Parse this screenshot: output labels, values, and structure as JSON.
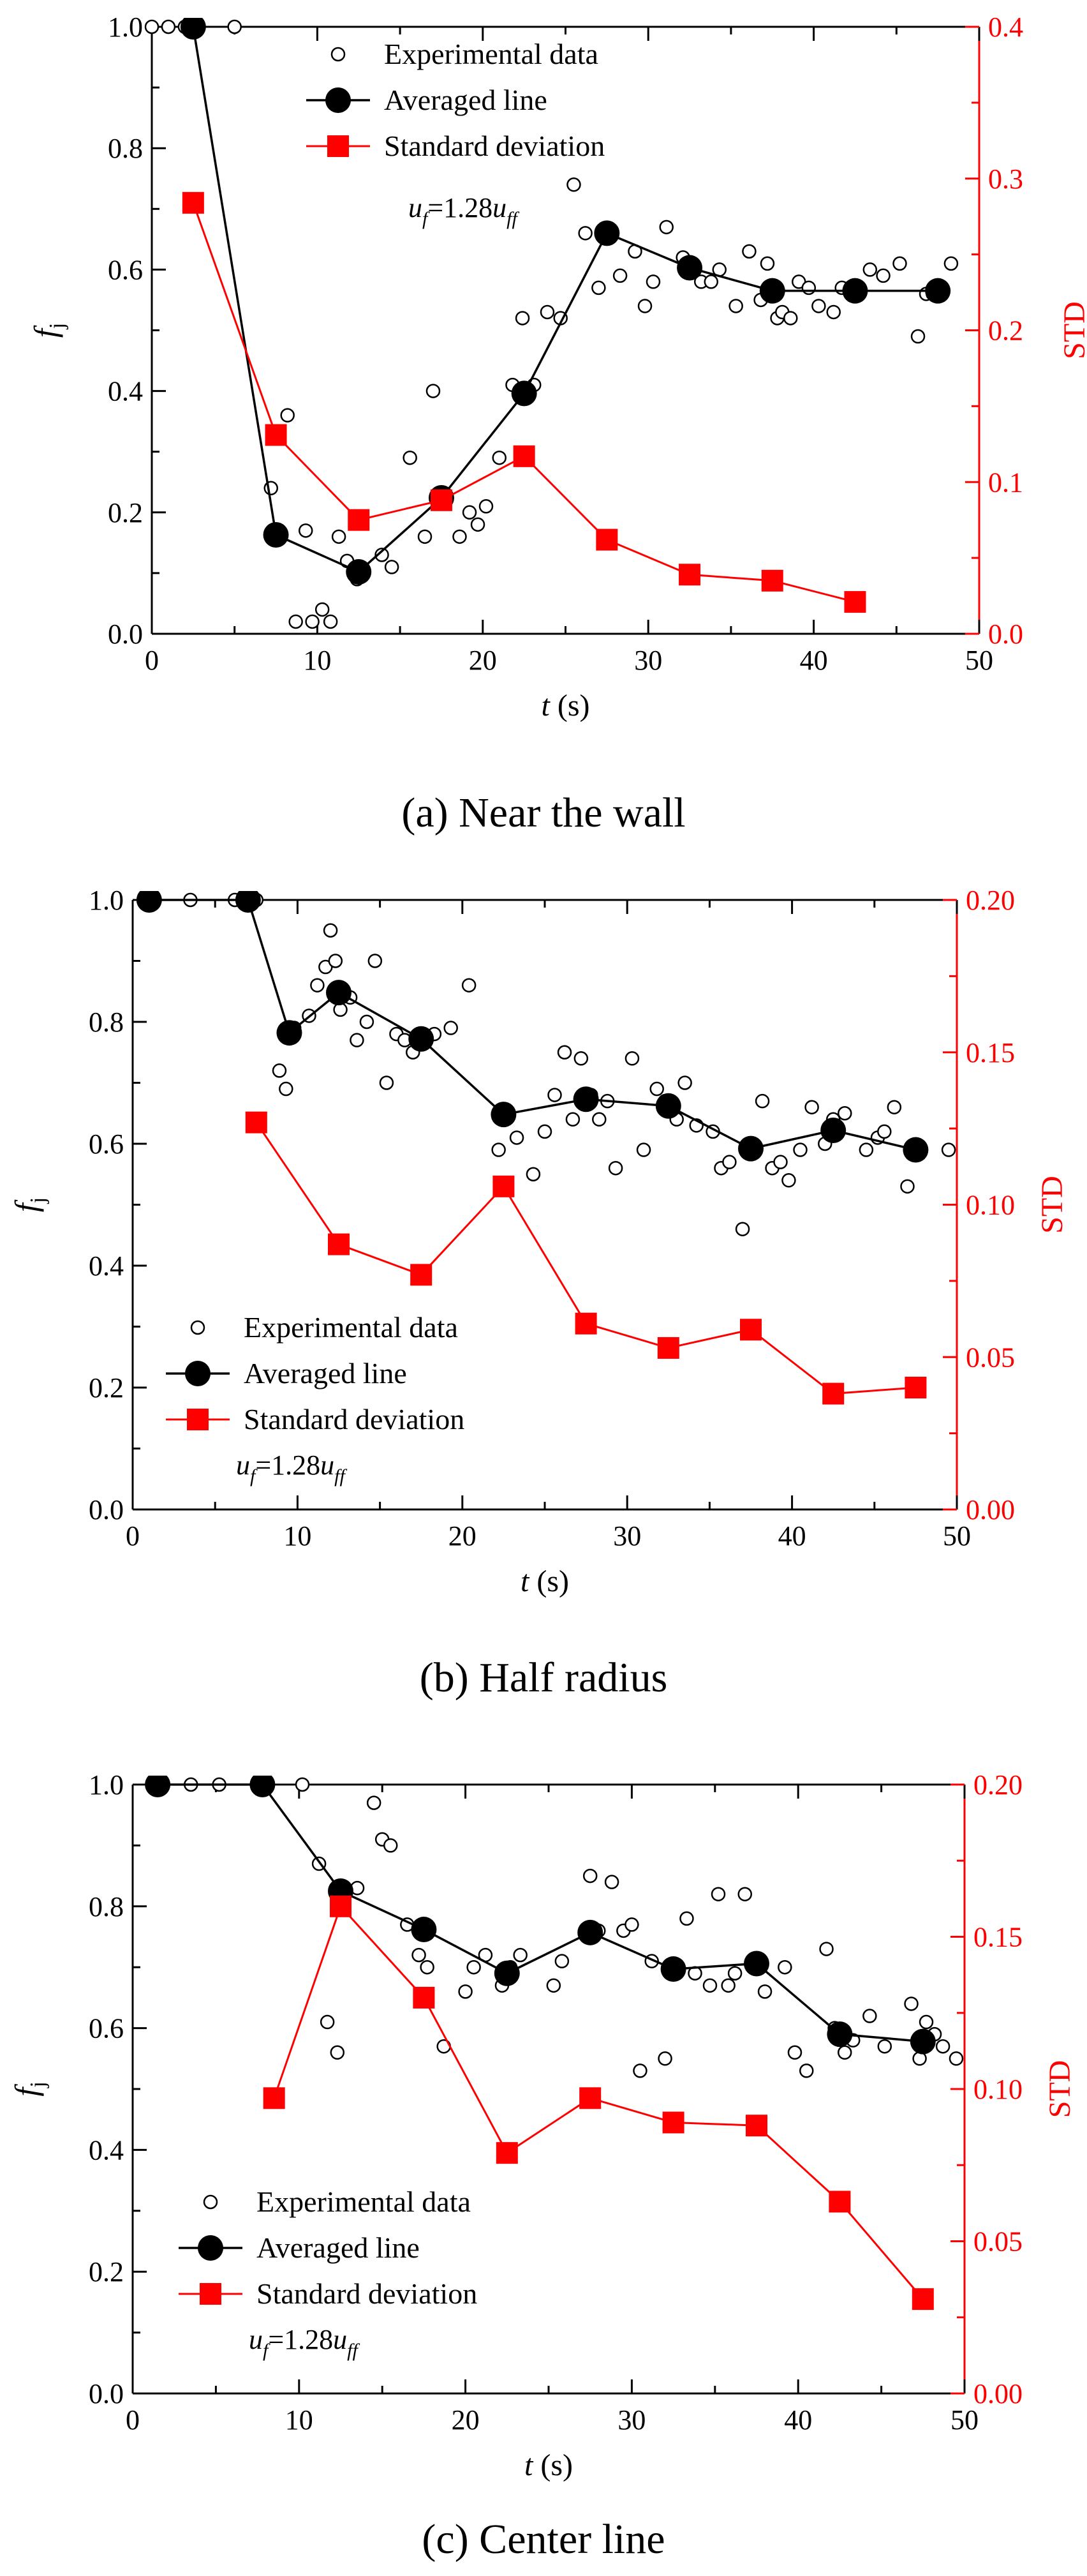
{
  "colors": {
    "primary": "#000000",
    "secondary": "#ff0000"
  },
  "chart_data": [
    {
      "type": "scatter",
      "caption": "(a) Near the wall",
      "xlabel_italic": "t",
      "xlabel_unit": " (s)",
      "ylabel_main": "f",
      "ylabel_sub": "j",
      "y2label": "STD",
      "xlim": [
        0,
        50
      ],
      "ylim": [
        0,
        1
      ],
      "y2lim": [
        0,
        0.4
      ],
      "xticks": [
        0,
        10,
        20,
        30,
        40,
        50
      ],
      "yticks": [
        0.0,
        0.2,
        0.4,
        0.6,
        0.8,
        1.0
      ],
      "y2ticks": [
        0.0,
        0.1,
        0.2,
        0.3,
        0.4
      ],
      "legend_position": "top-center",
      "annotation": {
        "u": "u",
        "f": "f",
        "eq": "=1.28",
        "ff": "ff"
      },
      "series": [
        {
          "name": "Experimental data",
          "style": "open-circle",
          "axis": "left",
          "x": [
            0,
            1,
            2,
            5,
            7.2,
            8.2,
            8.7,
            9.3,
            9.7,
            10.3,
            10.8,
            11.3,
            11.8,
            12.4,
            13.9,
            14.5,
            15.6,
            16.5,
            17.0,
            17.6,
            18.6,
            19.2,
            19.7,
            20.2,
            21.0,
            21.8,
            22.4,
            23.1,
            23.9,
            24.7,
            25.5,
            26.2,
            27.0,
            27.7,
            28.3,
            29.2,
            29.8,
            30.3,
            31.1,
            32.1,
            33.2,
            33.8,
            34.3,
            35.3,
            36.1,
            36.8,
            37.2,
            37.8,
            38.1,
            38.6,
            39.1,
            39.7,
            40.3,
            41.2,
            41.7,
            42.3,
            43.4,
            44.2,
            45.2,
            46.3,
            46.8,
            47.2,
            48.3
          ],
          "y": [
            1.0,
            1.0,
            1.0,
            1.0,
            0.24,
            0.36,
            0.02,
            0.17,
            0.02,
            0.04,
            0.02,
            0.16,
            0.12,
            0.09,
            0.13,
            0.11,
            0.29,
            0.16,
            0.4,
            0.22,
            0.16,
            0.2,
            0.18,
            0.21,
            0.29,
            0.41,
            0.52,
            0.41,
            0.53,
            0.52,
            0.74,
            0.66,
            0.57,
            0.66,
            0.59,
            0.63,
            0.54,
            0.58,
            0.67,
            0.62,
            0.58,
            0.58,
            0.6,
            0.54,
            0.63,
            0.55,
            0.61,
            0.52,
            0.53,
            0.52,
            0.58,
            0.57,
            0.54,
            0.53,
            0.57,
            0.56,
            0.6,
            0.59,
            0.61,
            0.49,
            0.56,
            0.56,
            0.61
          ]
        },
        {
          "name": "Averaged line",
          "style": "filled-circle-line",
          "axis": "left",
          "x": [
            2.5,
            7.5,
            12.5,
            17.5,
            22.5,
            27.5,
            32.5,
            37.5,
            42.5,
            47.5
          ],
          "y": [
            1.0,
            0.163,
            0.102,
            0.224,
            0.396,
            0.66,
            0.603,
            0.565,
            0.565,
            0.565
          ]
        },
        {
          "name": "Standard deviation",
          "style": "filled-square-line",
          "axis": "right",
          "x": [
            2.5,
            7.5,
            12.5,
            17.5,
            22.5,
            27.5,
            32.5,
            37.5,
            42.5
          ],
          "y": [
            0.284,
            0.131,
            0.075,
            0.088,
            0.117,
            0.062,
            0.039,
            0.035,
            0.021
          ]
        }
      ]
    },
    {
      "type": "scatter",
      "caption": "(b) Half radius",
      "xlabel_italic": "t",
      "xlabel_unit": " (s)",
      "ylabel_main": "f",
      "ylabel_sub": "j",
      "y2label": "STD",
      "xlim": [
        0,
        50
      ],
      "ylim": [
        0,
        1
      ],
      "y2lim": [
        0,
        0.2
      ],
      "xticks": [
        0,
        10,
        20,
        30,
        40,
        50
      ],
      "yticks": [
        0.0,
        0.2,
        0.4,
        0.6,
        0.8,
        1.0
      ],
      "y2ticks": [
        0.0,
        0.05,
        0.1,
        0.15,
        0.2
      ],
      "legend_position": "bottom-left",
      "annotation": {
        "u": "u",
        "f": "f",
        "eq": "=1.28",
        "ff": "ff"
      },
      "series": [
        {
          "name": "Experimental data",
          "style": "open-circle",
          "axis": "left",
          "x": [
            0.8,
            3.5,
            6.2,
            7.5,
            8.9,
            9.3,
            9.8,
            10.7,
            11.2,
            11.7,
            12.0,
            12.3,
            12.6,
            13.2,
            13.6,
            14.2,
            14.7,
            15.4,
            16.0,
            16.5,
            17.0,
            18.3,
            19.3,
            20.4,
            22.2,
            22.7,
            23.3,
            24.3,
            25.0,
            25.6,
            26.2,
            26.7,
            27.2,
            27.8,
            28.3,
            28.8,
            29.3,
            30.3,
            31.0,
            31.8,
            32.3,
            33.0,
            33.5,
            34.2,
            35.2,
            35.7,
            36.2,
            37.0,
            37.5,
            38.2,
            38.8,
            39.3,
            39.8,
            40.5,
            41.2,
            42.0,
            42.5,
            43.2,
            44.5,
            45.2,
            45.6,
            46.2,
            47.0,
            49.5
          ],
          "y": [
            1.0,
            1.0,
            1.0,
            1.0,
            0.72,
            0.69,
            0.79,
            0.81,
            0.86,
            0.89,
            0.95,
            0.9,
            0.82,
            0.84,
            0.77,
            0.8,
            0.9,
            0.7,
            0.78,
            0.77,
            0.75,
            0.78,
            0.79,
            0.86,
            0.59,
            0.65,
            0.61,
            0.55,
            0.62,
            0.68,
            0.75,
            0.64,
            0.74,
            0.68,
            0.64,
            0.67,
            0.56,
            0.74,
            0.59,
            0.69,
            0.67,
            0.64,
            0.7,
            0.63,
            0.62,
            0.56,
            0.57,
            0.46,
            0.59,
            0.67,
            0.56,
            0.57,
            0.54,
            0.59,
            0.66,
            0.6,
            0.64,
            0.65,
            0.59,
            0.61,
            0.62,
            0.66,
            0.53,
            0.59
          ]
        },
        {
          "name": "Averaged line",
          "style": "filled-circle-line",
          "axis": "left",
          "x": [
            1,
            7,
            9.5,
            12.5,
            17.5,
            22.5,
            27.5,
            32.5,
            37.5,
            42.5,
            47.5
          ],
          "y": [
            1.0,
            1.0,
            0.782,
            0.848,
            0.772,
            0.648,
            0.673,
            0.662,
            0.592,
            0.622,
            0.59
          ]
        },
        {
          "name": "Standard deviation",
          "style": "filled-square-line",
          "axis": "right",
          "x": [
            7.5,
            12.5,
            17.5,
            22.5,
            27.5,
            32.5,
            37.5,
            42.5,
            47.5
          ],
          "y": [
            0.127,
            0.087,
            0.077,
            0.106,
            0.061,
            0.053,
            0.059,
            0.038,
            0.04
          ]
        }
      ]
    },
    {
      "type": "scatter",
      "caption": "(c) Center line",
      "xlabel_italic": "t",
      "xlabel_unit": " (s)",
      "ylabel_main": "f",
      "ylabel_sub": "j",
      "y2label": "STD",
      "xlim": [
        0,
        50
      ],
      "ylim": [
        0,
        1
      ],
      "y2lim": [
        0,
        0.2
      ],
      "xticks": [
        0,
        10,
        20,
        30,
        40,
        50
      ],
      "yticks": [
        0.0,
        0.2,
        0.4,
        0.6,
        0.8,
        1.0
      ],
      "y2ticks": [
        0.0,
        0.05,
        0.1,
        0.15,
        0.2
      ],
      "legend_position": "bottom-left",
      "annotation": {
        "u": "u",
        "f": "f",
        "eq": "=1.28",
        "ff": "ff"
      },
      "series": [
        {
          "name": "Experimental data",
          "style": "open-circle",
          "axis": "left",
          "x": [
            1.5,
            3.5,
            5.2,
            7.5,
            10.2,
            11.2,
            11.7,
            12.3,
            13.5,
            14.5,
            15.0,
            15.5,
            16.5,
            17.2,
            17.7,
            18.7,
            20.0,
            20.5,
            21.2,
            22.2,
            22.7,
            23.3,
            25.3,
            25.8,
            27.5,
            28.0,
            28.8,
            29.5,
            30.0,
            30.5,
            31.2,
            32.0,
            32.7,
            33.3,
            33.8,
            34.7,
            35.2,
            35.8,
            36.2,
            36.8,
            37.3,
            38.0,
            39.2,
            39.8,
            40.5,
            41.7,
            42.2,
            42.8,
            43.3,
            44.3,
            45.2,
            46.8,
            47.3,
            47.7,
            48.2,
            48.7,
            49.5
          ],
          "y": [
            1.0,
            1.0,
            1.0,
            1.0,
            1.0,
            0.87,
            0.61,
            0.56,
            0.83,
            0.97,
            0.91,
            0.9,
            0.77,
            0.72,
            0.7,
            0.57,
            0.66,
            0.7,
            0.72,
            0.67,
            0.7,
            0.72,
            0.67,
            0.71,
            0.85,
            0.76,
            0.84,
            0.76,
            0.77,
            0.53,
            0.71,
            0.55,
            0.7,
            0.78,
            0.69,
            0.67,
            0.82,
            0.67,
            0.69,
            0.82,
            0.7,
            0.66,
            0.7,
            0.56,
            0.53,
            0.73,
            0.6,
            0.56,
            0.58,
            0.62,
            0.57,
            0.64,
            0.55,
            0.61,
            0.59,
            0.57,
            0.55
          ]
        },
        {
          "name": "Averaged line",
          "style": "filled-circle-line",
          "axis": "left",
          "x": [
            1.5,
            7.8,
            12.5,
            17.5,
            22.5,
            27.5,
            32.5,
            37.5,
            42.5,
            47.5
          ],
          "y": [
            1.0,
            1.0,
            0.825,
            0.762,
            0.69,
            0.757,
            0.697,
            0.706,
            0.59,
            0.578
          ]
        },
        {
          "name": "Standard deviation",
          "style": "filled-square-line",
          "axis": "right",
          "x": [
            8.5,
            12.5,
            17.5,
            22.5,
            27.5,
            32.5,
            37.5,
            42.5,
            47.5
          ],
          "y": [
            0.097,
            0.16,
            0.13,
            0.079,
            0.097,
            0.089,
            0.088,
            0.063,
            0.031
          ]
        }
      ]
    }
  ]
}
